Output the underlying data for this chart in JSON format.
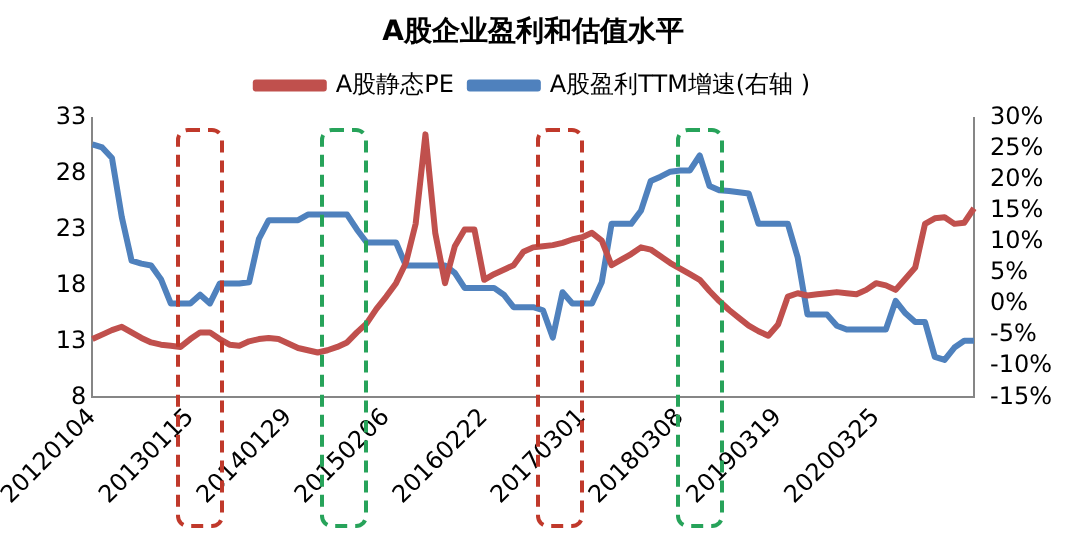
{
  "chart_data": {
    "type": "line",
    "title": "A股企业盈利和估值水平",
    "categories": [
      "20120104",
      null,
      null,
      null,
      null,
      null,
      null,
      null,
      null,
      null,
      "20130115",
      null,
      null,
      null,
      null,
      null,
      null,
      null,
      null,
      null,
      "20140129",
      null,
      null,
      null,
      null,
      null,
      null,
      null,
      null,
      null,
      "20150206",
      null,
      null,
      null,
      null,
      null,
      null,
      null,
      null,
      null,
      "20160222",
      null,
      null,
      null,
      null,
      null,
      null,
      null,
      null,
      null,
      "20170301",
      null,
      null,
      null,
      null,
      null,
      null,
      null,
      null,
      null,
      "20180308",
      null,
      null,
      null,
      null,
      null,
      null,
      null,
      null,
      null,
      "20190319",
      null,
      null,
      null,
      null,
      null,
      null,
      null,
      null,
      null,
      "20200325",
      null,
      null,
      null,
      null,
      null,
      null,
      null,
      null,
      null,
      null
    ],
    "series": [
      {
        "name": "A股静态PE",
        "color": "#c0504d",
        "values": [
          13.2,
          13.6,
          14.0,
          14.3,
          13.8,
          13.3,
          12.9,
          12.7,
          12.6,
          12.5,
          13.2,
          13.8,
          13.8,
          13.2,
          12.7,
          12.6,
          13.0,
          13.2,
          13.3,
          13.2,
          12.8,
          12.4,
          12.2,
          12.0,
          12.2,
          12.5,
          12.9,
          13.8,
          14.6,
          15.9,
          17.0,
          18.2,
          20.0,
          23.5,
          31.5,
          22.7,
          18.2,
          21.5,
          23.0,
          23.0,
          18.5,
          19.0,
          19.4,
          19.8,
          21.0,
          21.4,
          21.5,
          21.6,
          21.8,
          22.1,
          22.3,
          22.7,
          22.0,
          19.8,
          20.3,
          20.8,
          21.4,
          21.2,
          20.6,
          20.0,
          19.5,
          19.0,
          18.5,
          17.5,
          16.6,
          15.8,
          15.1,
          14.4,
          13.9,
          13.5,
          14.5,
          17.0,
          17.3,
          17.1,
          17.2,
          17.3,
          17.4,
          17.3,
          17.2,
          17.6,
          18.2,
          18.0,
          17.6,
          18.6,
          19.6,
          23.5,
          24.0,
          24.1,
          23.5,
          23.6,
          24.9
        ]
      },
      {
        "name": "A股盈利TTM增速(右轴 )",
        "color": "#4f81bd",
        "axis": "y2",
        "values": [
          25.7,
          25.2,
          23.5,
          14.0,
          7.0,
          6.5,
          6.2,
          4.0,
          0.1,
          0.1,
          0.1,
          1.5,
          0.1,
          3.3,
          3.3,
          3.3,
          3.5,
          10.5,
          13.5,
          13.5,
          13.5,
          13.5,
          14.4,
          14.4,
          14.4,
          14.4,
          14.4,
          12.0,
          9.9,
          9.9,
          9.9,
          9.9,
          6.2,
          6.2,
          6.2,
          6.2,
          6.2,
          5.0,
          2.6,
          2.6,
          2.6,
          2.6,
          1.5,
          -0.5,
          -0.5,
          -0.5,
          -1.0,
          -5.4,
          1.9,
          0.1,
          0.1,
          0.1,
          3.5,
          12.9,
          12.9,
          12.9,
          15.0,
          19.8,
          20.5,
          21.3,
          21.5,
          21.5,
          23.9,
          19.0,
          18.3,
          18.2,
          18.0,
          17.8,
          12.9,
          12.9,
          12.9,
          12.9,
          7.5,
          -1.7,
          -1.7,
          -1.7,
          -3.5,
          -4.1,
          -4.1,
          -4.1,
          -4.1,
          -4.1,
          0.5,
          -1.5,
          -2.9,
          -2.9,
          -8.5,
          -9.0,
          -7.0,
          -5.9,
          -5.9
        ]
      }
    ],
    "ylim": [
      8,
      33
    ],
    "yticks": [
      8,
      13,
      18,
      23,
      28,
      33
    ],
    "y2lim": [
      -15,
      30
    ],
    "y2ticks": [
      {
        "value": -15,
        "label": "-15%"
      },
      {
        "value": -10,
        "label": "-10%"
      },
      {
        "value": -5,
        "label": "-5%"
      },
      {
        "value": 0,
        "label": "0%"
      },
      {
        "value": 5,
        "label": "5%"
      },
      {
        "value": 10,
        "label": "10%"
      },
      {
        "value": 15,
        "label": "15%"
      },
      {
        "value": 20,
        "label": "20%"
      },
      {
        "value": 25,
        "label": "25%"
      },
      {
        "value": 30,
        "label": "30%"
      }
    ],
    "grid": false,
    "legend": "top",
    "marker": "none",
    "line_style": "solid"
  }
}
